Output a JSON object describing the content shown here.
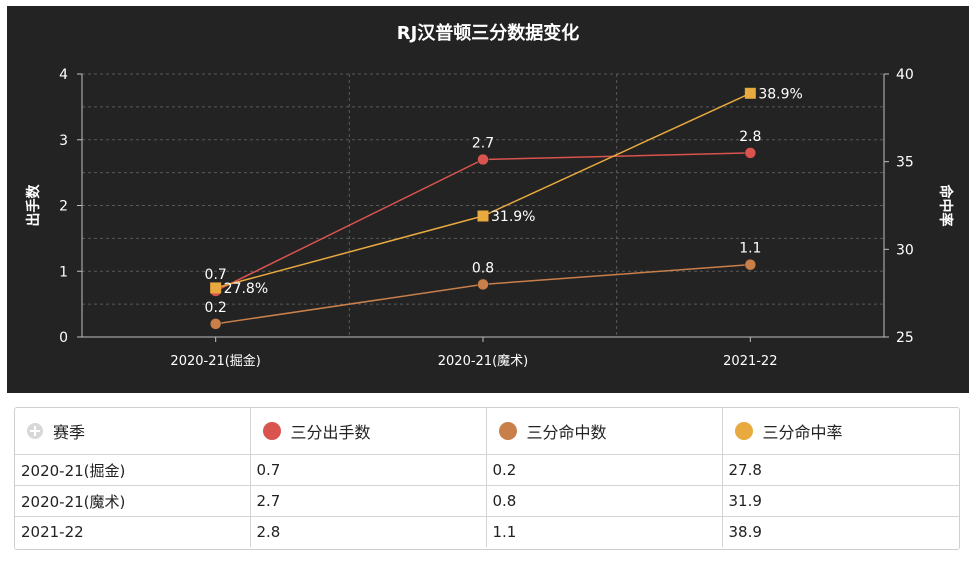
{
  "chart_data": {
    "type": "line",
    "title": "RJ汉普顿三分数据变化",
    "categories": [
      "2020-21(掘金)",
      "2020-21(魔术)",
      "2021-22"
    ],
    "y_left": {
      "label": "出手数",
      "range": [
        0,
        4
      ],
      "ticks": [
        "0",
        "1",
        "2",
        "3",
        "4"
      ]
    },
    "y_right": {
      "label": "命中率",
      "range": [
        25,
        40
      ],
      "ticks": [
        "25",
        "30",
        "35",
        "40"
      ]
    },
    "grid": true,
    "series": [
      {
        "name": "三分出手数",
        "axis": "left",
        "color": "#d9534f",
        "marker": "circle",
        "values": [
          0.7,
          2.7,
          2.8
        ],
        "labels": [
          "0.7",
          "2.7",
          "2.8"
        ]
      },
      {
        "name": "三分命中数",
        "axis": "left",
        "color": "#c87f4a",
        "marker": "circle",
        "values": [
          0.2,
          0.8,
          1.1
        ],
        "labels": [
          "0.2",
          "0.8",
          "1.1"
        ]
      },
      {
        "name": "三分命中率",
        "axis": "right",
        "color": "#e8a93e",
        "marker": "square",
        "values": [
          27.8,
          31.9,
          38.9
        ],
        "labels": [
          "27.8%",
          "31.9%",
          "38.9%"
        ]
      }
    ]
  },
  "table": {
    "headers": [
      {
        "label": "赛季",
        "icon": "plus-circle-icon"
      },
      {
        "label": "三分出手数",
        "color": "#d9534f"
      },
      {
        "label": "三分命中数",
        "color": "#c87f4a"
      },
      {
        "label": "三分命中率",
        "color": "#e8a93e"
      }
    ],
    "rows": [
      [
        "2020-21(掘金)",
        "0.7",
        "0.2",
        "27.8"
      ],
      [
        "2020-21(魔术)",
        "2.7",
        "0.8",
        "31.9"
      ],
      [
        "2021-22",
        "2.8",
        "1.1",
        "38.9"
      ]
    ]
  }
}
